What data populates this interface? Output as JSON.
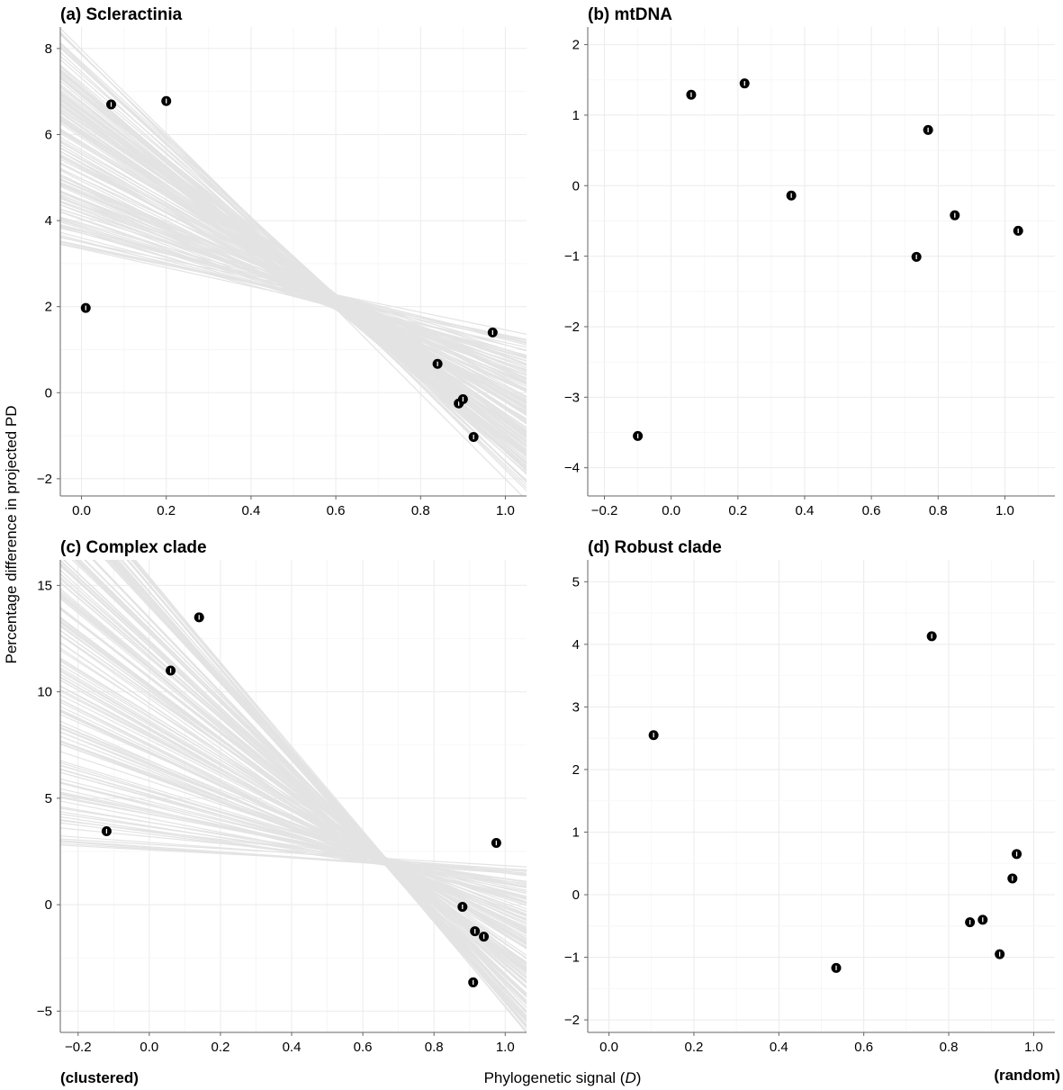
{
  "figure": {
    "ylabel": "Percentage difference in projected PD",
    "xlabel_main": "Phylogenetic signal (",
    "xlabel_var": "D",
    "xlabel_close": ")",
    "x_left_label": "(clustered)",
    "x_right_label": "(random)"
  },
  "chart_data": [
    {
      "type": "scatter",
      "panel": "a",
      "title": "(a) Scleractinia",
      "xlim": [
        -0.05,
        1.05
      ],
      "ylim": [
        -2.4,
        8.5
      ],
      "xticks": [
        0.0,
        0.2,
        0.4,
        0.6,
        0.8,
        1.0
      ],
      "xtick_labels": [
        "0.0",
        "0.2",
        "0.4",
        "0.6",
        "0.8",
        "1.0"
      ],
      "yticks": [
        -2,
        0,
        2,
        4,
        6,
        8
      ],
      "ytick_labels": [
        "−2",
        "0",
        "2",
        "4",
        "6",
        "8"
      ],
      "grid": true,
      "points": [
        {
          "x": 0.01,
          "y": 1.97
        },
        {
          "x": 0.07,
          "y": 6.7
        },
        {
          "x": 0.2,
          "y": 6.78
        },
        {
          "x": 0.84,
          "y": 0.67
        },
        {
          "x": 0.89,
          "y": -0.25
        },
        {
          "x": 0.9,
          "y": -0.15
        },
        {
          "x": 0.925,
          "y": -1.03
        },
        {
          "x": 0.97,
          "y": 1.4
        }
      ],
      "fit_lines": {
        "count": 160,
        "intercept_range": [
          3.3,
          8.0
        ],
        "value_at_x1_range": [
          -1.8,
          1.3
        ],
        "color": "#e3e3e3"
      }
    },
    {
      "type": "scatter",
      "panel": "b",
      "title": "(b) mtDNA",
      "xlim": [
        -0.25,
        1.15
      ],
      "ylim": [
        -4.4,
        2.25
      ],
      "xticks": [
        -0.2,
        0.0,
        0.2,
        0.4,
        0.6,
        0.8,
        1.0
      ],
      "xtick_labels": [
        "−0.2",
        "0.0",
        "0.2",
        "0.4",
        "0.6",
        "0.8",
        "1.0"
      ],
      "yticks": [
        -4,
        -3,
        -2,
        -1,
        0,
        1,
        2
      ],
      "ytick_labels": [
        "−4",
        "−3",
        "−2",
        "−1",
        "0",
        "1",
        "2"
      ],
      "grid": true,
      "points": [
        {
          "x": -0.1,
          "y": -3.55
        },
        {
          "x": 0.06,
          "y": 1.29
        },
        {
          "x": 0.22,
          "y": 1.45
        },
        {
          "x": 0.36,
          "y": -0.14
        },
        {
          "x": 0.735,
          "y": -1.01
        },
        {
          "x": 0.77,
          "y": 0.79
        },
        {
          "x": 0.85,
          "y": -0.42
        },
        {
          "x": 1.04,
          "y": -0.64
        }
      ]
    },
    {
      "type": "scatter",
      "panel": "c",
      "title": "(c) Complex clade",
      "xlim": [
        -0.25,
        1.06
      ],
      "ylim": [
        -6.0,
        16.2
      ],
      "xticks": [
        -0.2,
        0.0,
        0.2,
        0.4,
        0.6,
        0.8,
        1.0
      ],
      "xtick_labels": [
        "−0.2",
        "0.0",
        "0.2",
        "0.4",
        "0.6",
        "0.8",
        "1.0"
      ],
      "yticks": [
        -5,
        0,
        5,
        10,
        15
      ],
      "ytick_labels": [
        "−5",
        "0",
        "5",
        "10",
        "15"
      ],
      "grid": true,
      "points": [
        {
          "x": -0.12,
          "y": 3.45
        },
        {
          "x": 0.06,
          "y": 11.0
        },
        {
          "x": 0.14,
          "y": 13.5
        },
        {
          "x": 0.88,
          "y": -0.1
        },
        {
          "x": 0.91,
          "y": -3.65
        },
        {
          "x": 0.915,
          "y": -1.25
        },
        {
          "x": 0.94,
          "y": -1.5
        },
        {
          "x": 0.975,
          "y": 2.9
        }
      ],
      "fit_lines": {
        "count": 160,
        "intercept_range": [
          2.5,
          15.5
        ],
        "value_at_x1_range": [
          -4.8,
          1.8
        ],
        "color": "#e3e3e3"
      }
    },
    {
      "type": "scatter",
      "panel": "d",
      "title": "(d) Robust clade",
      "xlim": [
        -0.05,
        1.05
      ],
      "ylim": [
        -2.2,
        5.35
      ],
      "xticks": [
        0.0,
        0.2,
        0.4,
        0.6,
        0.8,
        1.0
      ],
      "xtick_labels": [
        "0.0",
        "0.2",
        "0.4",
        "0.6",
        "0.8",
        "1.0"
      ],
      "yticks": [
        -2,
        -1,
        0,
        1,
        2,
        3,
        4,
        5
      ],
      "ytick_labels": [
        "−2",
        "−1",
        "0",
        "1",
        "2",
        "3",
        "4",
        "5"
      ],
      "grid": true,
      "points": [
        {
          "x": 0.105,
          "y": 2.55
        },
        {
          "x": 0.535,
          "y": -1.17
        },
        {
          "x": 0.76,
          "y": 4.13
        },
        {
          "x": 0.85,
          "y": -0.44
        },
        {
          "x": 0.88,
          "y": -0.4
        },
        {
          "x": 0.92,
          "y": -0.95
        },
        {
          "x": 0.95,
          "y": 0.26
        },
        {
          "x": 0.96,
          "y": 0.65
        }
      ]
    }
  ]
}
